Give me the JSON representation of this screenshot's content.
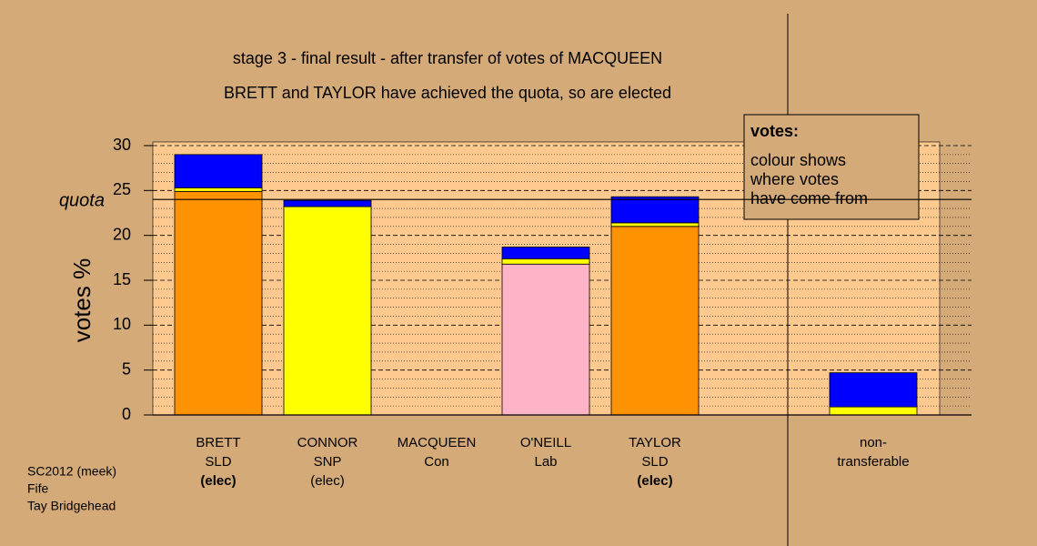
{
  "chart_data": {
    "type": "bar",
    "stacked": true,
    "title": "stage 3 - final result - after transfer of votes of MACQUEEN",
    "subtitle": "BRETT and TAYLOR have achieved the quota, so are elected",
    "y_label": "votes %",
    "labels": [
      [
        "BRETT",
        "SLD",
        "(elec)"
      ],
      [
        "CONNOR",
        "SNP",
        "(elec)"
      ],
      [
        "MACQUEEN",
        "Con"
      ],
      [
        "O'NEILL",
        "Lab"
      ],
      [
        "TAYLOR",
        "SLD",
        "(elec)"
      ],
      [
        "non-",
        "transferable"
      ]
    ],
    "bold_status": [
      true,
      false,
      false,
      false,
      true,
      false
    ],
    "series": [
      {
        "colors": [
          "#ff9200",
          "#ffff00",
          "#0000ff",
          "#ffb3c6",
          "#ff9200",
          null
        ],
        "values": [
          24.9,
          23.2,
          0,
          16.8,
          21.0,
          0
        ]
      },
      {
        "color": "#ffff00",
        "values": [
          0.4,
          0,
          0,
          0.6,
          0.4,
          0.9
        ]
      },
      {
        "color": "#0000ff",
        "values": [
          3.7,
          0.7,
          0,
          1.3,
          2.9,
          3.8
        ]
      }
    ],
    "quota": {
      "value": 24,
      "label": "quota"
    },
    "ylim": [
      0,
      30
    ],
    "yticks": [
      0,
      5,
      10,
      15,
      20,
      25,
      30
    ],
    "minor_yticks": [
      1,
      2,
      3,
      4,
      6,
      7,
      8,
      9,
      11,
      12,
      13,
      14,
      16,
      17,
      18,
      19,
      21,
      22,
      23,
      24,
      26,
      27,
      28,
      29
    ],
    "grid": true,
    "legend": {
      "title": "votes:",
      "lines": [
        "colour shows",
        "where votes",
        "have come from"
      ]
    },
    "footer": [
      "SC2012 (meek)",
      "Fife",
      "Tay Bridgehead"
    ]
  }
}
